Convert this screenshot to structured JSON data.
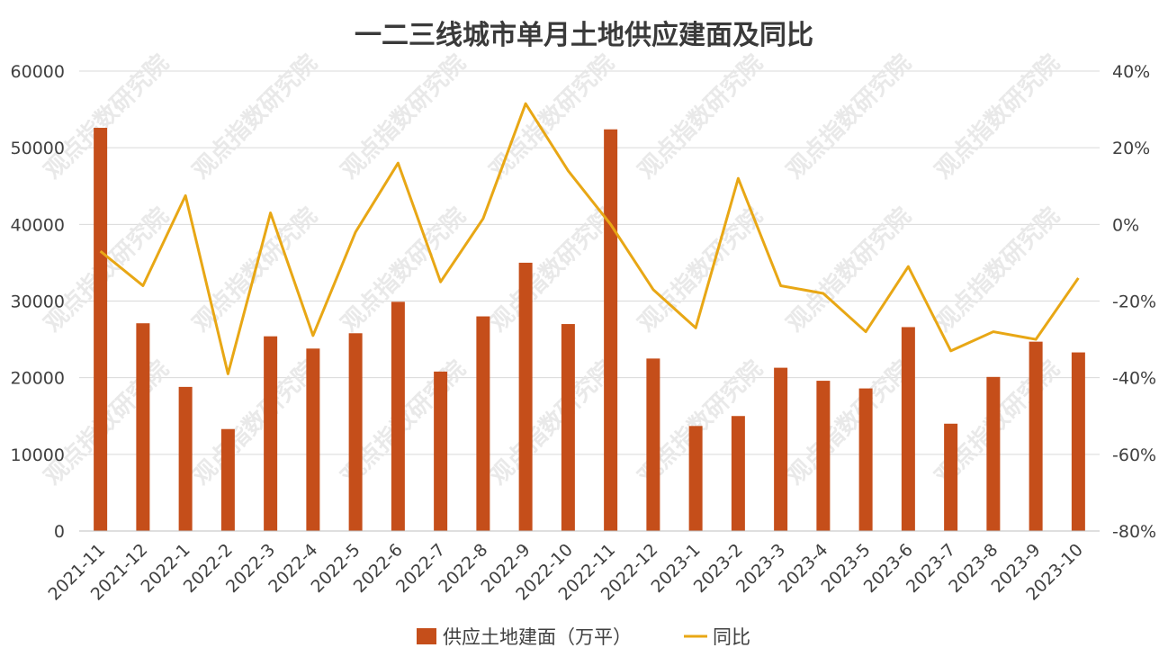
{
  "chart_data": {
    "type": "bar",
    "title": "一二三线城市单月土地供应建面及同比",
    "categories": [
      "2021-11",
      "2021-12",
      "2022-1",
      "2022-2",
      "2022-3",
      "2022-4",
      "2022-5",
      "2022-6",
      "2022-7",
      "2022-8",
      "2022-9",
      "2022-10",
      "2022-11",
      "2022-12",
      "2023-1",
      "2023-2",
      "2023-3",
      "2023-4",
      "2023-5",
      "2023-6",
      "2023-7",
      "2023-8",
      "2023-9",
      "2023-10"
    ],
    "series": [
      {
        "name": "供应土地建面（万平）",
        "type": "bar",
        "axis": "left",
        "color": "#C54E1A",
        "values": [
          52600,
          27100,
          18800,
          13300,
          25400,
          23800,
          25800,
          29900,
          20800,
          28000,
          35000,
          27000,
          52400,
          22500,
          13700,
          15000,
          21300,
          19600,
          18600,
          26600,
          14000,
          20100,
          24700,
          23300
        ]
      },
      {
        "name": "同比",
        "type": "line",
        "axis": "right",
        "color": "#E8A715",
        "values": [
          -7,
          -16,
          7.5,
          -39,
          3,
          -29,
          -2,
          16,
          -15,
          1.5,
          31.5,
          14,
          0,
          -17,
          -27,
          12,
          -16,
          -18,
          -28,
          -11,
          -33,
          -28,
          -30,
          -14
        ]
      }
    ],
    "ylim": [
      0,
      60000
    ],
    "yticks": [
      "0",
      "10000",
      "20000",
      "30000",
      "40000",
      "50000",
      "60000"
    ],
    "y2lim": [
      -80,
      40
    ],
    "y2ticks": [
      "-80%",
      "-60%",
      "-40%",
      "-20%",
      "0%",
      "20%",
      "40%"
    ],
    "grid": true,
    "legend_position": "bottom",
    "watermark": "观点指数研究院"
  }
}
